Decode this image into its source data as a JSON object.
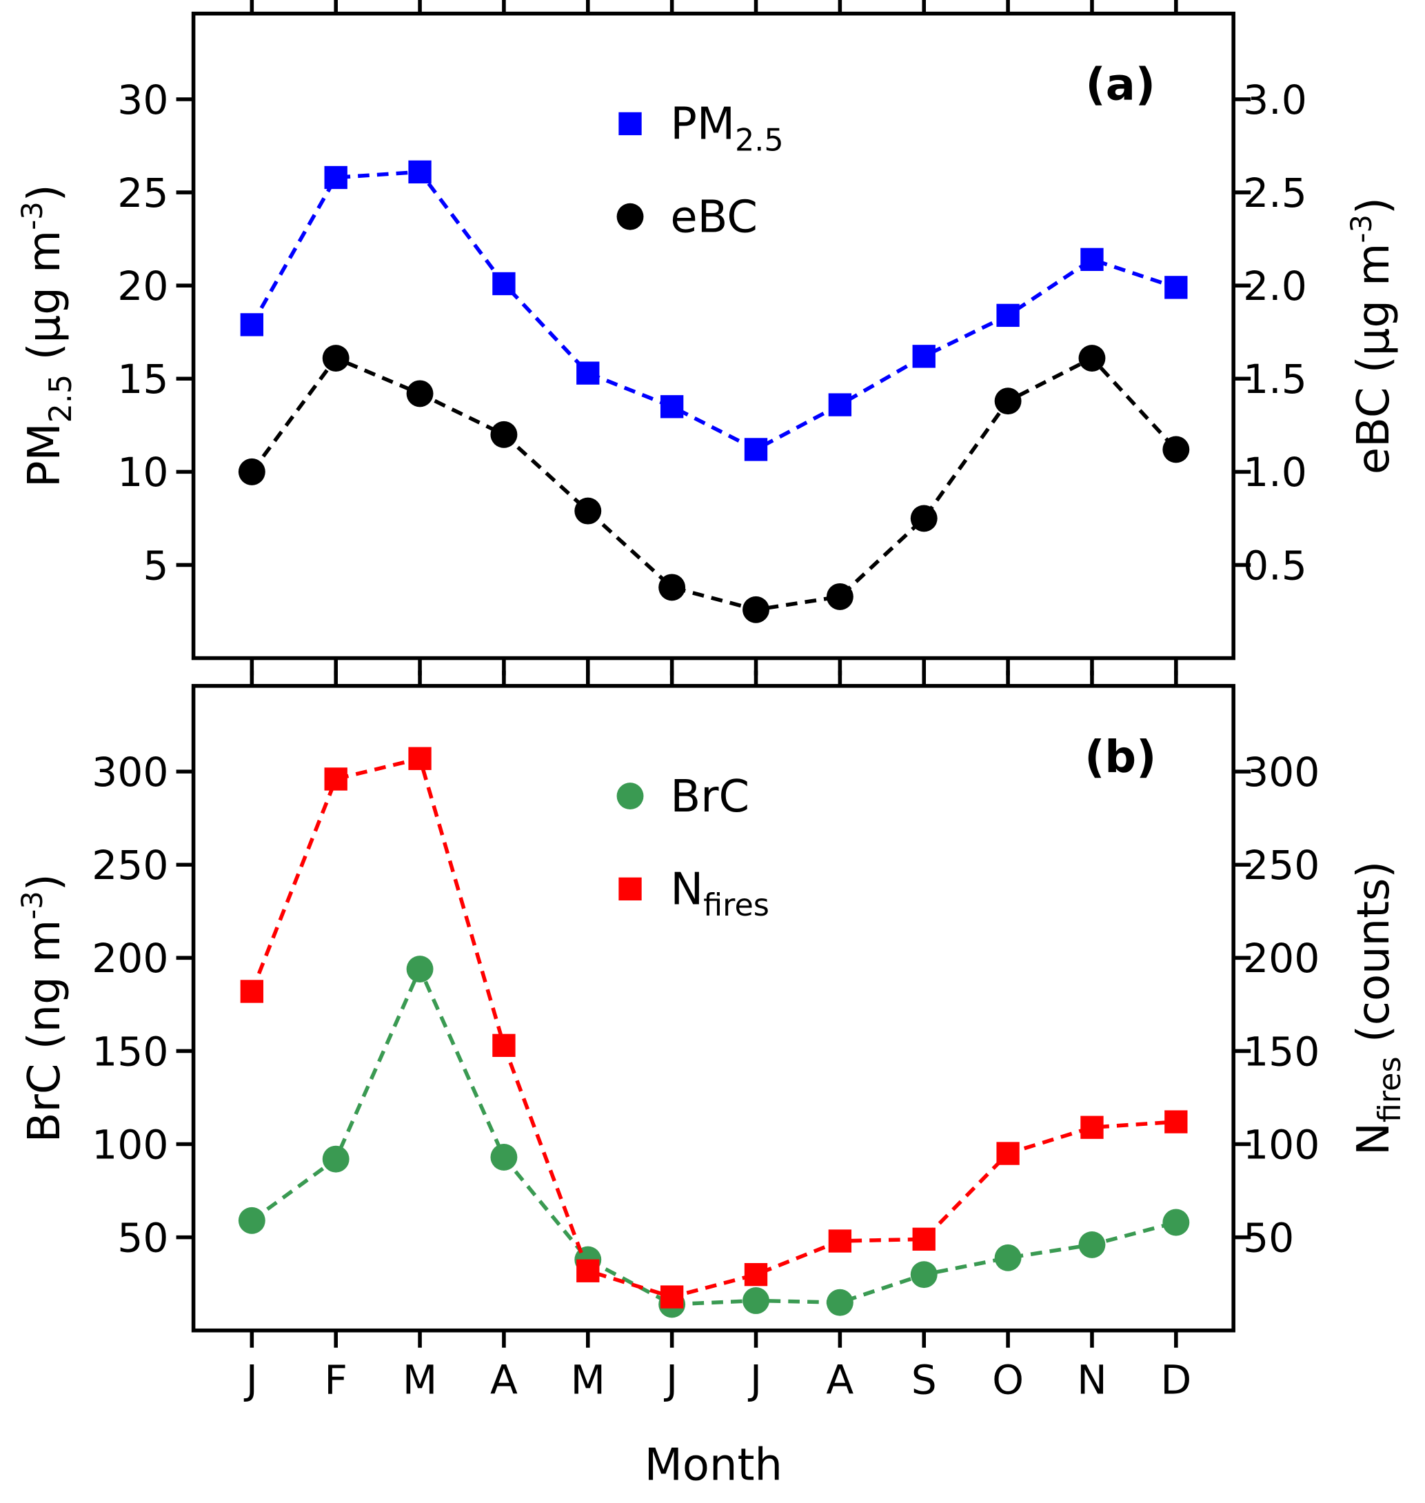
{
  "chart_data": [
    {
      "type": "line",
      "panel_label": "(a)",
      "categories": [
        "J",
        "F",
        "M",
        "A",
        "M",
        "J",
        "J",
        "A",
        "S",
        "O",
        "N",
        "D"
      ],
      "xlabel": "Month",
      "ylabel_left": {
        "main": "PM",
        "sub": "2.5",
        "unit": "(µg m",
        "sup": "-3",
        "close": ")"
      },
      "ylabel_right": {
        "main": "eBC",
        "unit": "(µg m",
        "sup": "-3",
        "close": ")"
      },
      "ylim_left": [
        0,
        34.6
      ],
      "ylim_right": [
        0,
        3.46
      ],
      "yticks_left": [
        "5",
        "10",
        "15",
        "20",
        "25",
        "30"
      ],
      "yticks_right": [
        "0.5",
        "1.0",
        "1.5",
        "2.0",
        "2.5",
        "3.0"
      ],
      "legend_placement": "top-center",
      "grid": false,
      "series": [
        {
          "name": "PM",
          "name_sub": "2.5",
          "axis": "left",
          "marker": "square",
          "color": "#0000ff",
          "values": [
            17.9,
            25.8,
            26.1,
            20.1,
            15.3,
            13.5,
            11.2,
            13.6,
            16.2,
            18.4,
            21.4,
            19.9
          ]
        },
        {
          "name": "eBC",
          "name_sub": "",
          "axis": "right",
          "marker": "circle",
          "color": "#000000",
          "values": [
            1.0,
            1.61,
            1.42,
            1.2,
            0.79,
            0.38,
            0.26,
            0.33,
            0.75,
            1.38,
            1.61,
            1.12
          ]
        }
      ]
    },
    {
      "type": "line",
      "panel_label": "(b)",
      "categories": [
        "J",
        "F",
        "M",
        "A",
        "M",
        "J",
        "J",
        "A",
        "S",
        "O",
        "N",
        "D"
      ],
      "xlabel": "Month",
      "ylabel_left": {
        "main": "BrC",
        "unit": "(ng m",
        "sup": "-3",
        "close": ")"
      },
      "ylabel_right": {
        "main": "N",
        "sub": "fires",
        "unit": "(counts)"
      },
      "ylim_left": [
        0,
        346
      ],
      "ylim_right": [
        0,
        346
      ],
      "yticks_left": [
        "50",
        "100",
        "150",
        "200",
        "250",
        "300"
      ],
      "yticks_right": [
        "50",
        "100",
        "150",
        "200",
        "250",
        "300"
      ],
      "legend_placement": "top-center",
      "grid": false,
      "series": [
        {
          "name": "BrC",
          "name_sub": "",
          "axis": "left",
          "marker": "circle",
          "color": "#3a9a52",
          "values": [
            59,
            92,
            194,
            93,
            38,
            14,
            16,
            15,
            30,
            39,
            46,
            58
          ]
        },
        {
          "name": "N",
          "name_sub": "fires",
          "axis": "right",
          "marker": "square",
          "color": "#ff0000",
          "values": [
            182,
            296,
            307,
            153,
            32,
            18,
            30,
            48,
            49,
            95,
            109,
            112
          ]
        }
      ]
    }
  ]
}
